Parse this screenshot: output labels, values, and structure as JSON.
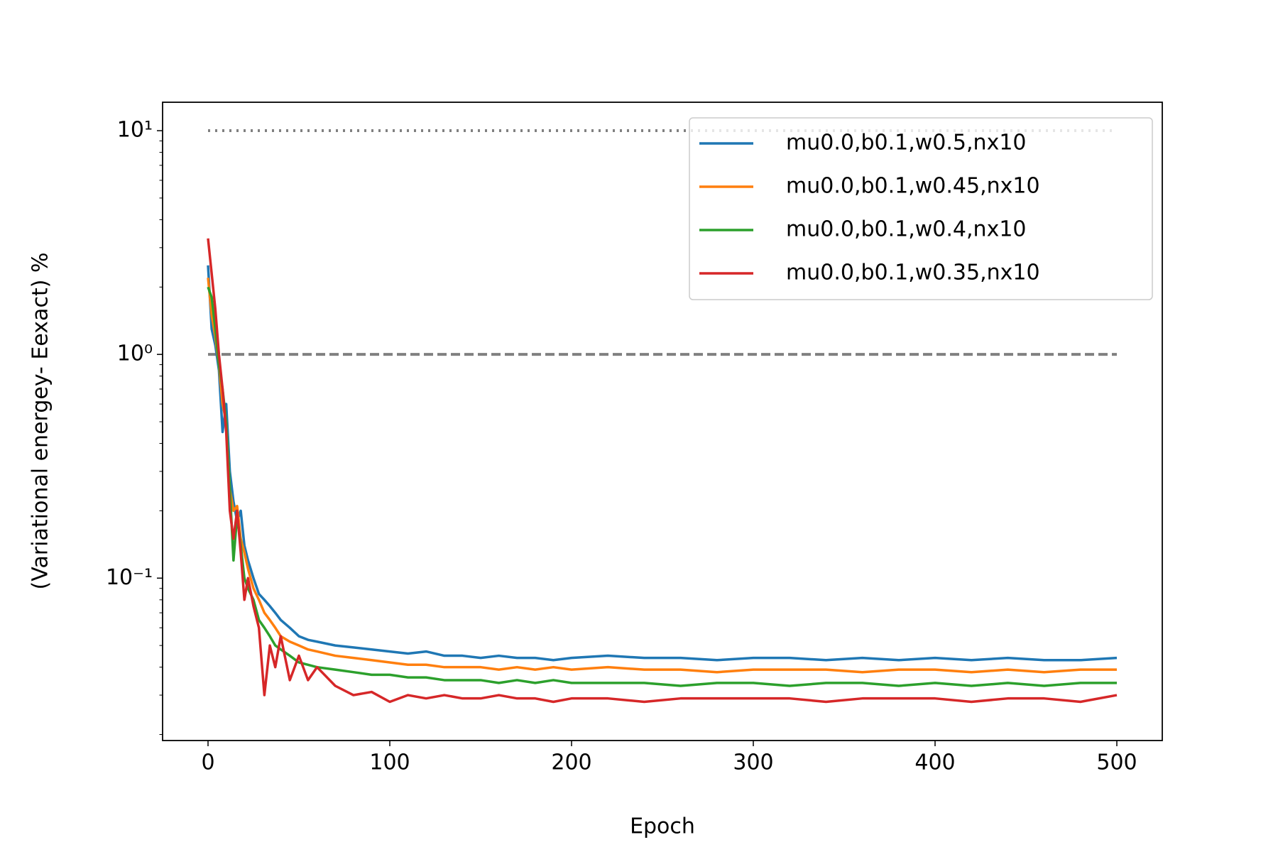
{
  "chart_data": {
    "type": "line",
    "xlabel": "Epoch",
    "ylabel": "(Variational energey- Eexact) %",
    "log_y": true,
    "legend": "upper right",
    "xlim": [
      -25,
      525
    ],
    "ylim": [
      0.0188,
      13.4
    ],
    "xticks": [
      0,
      100,
      200,
      300,
      400,
      500
    ],
    "yticks": [
      {
        "value": 0.1,
        "label": "10⁻¹"
      },
      {
        "value": 1,
        "label": "10⁰"
      },
      {
        "value": 10,
        "label": "10¹"
      }
    ],
    "yminorticks": [
      0.02,
      0.03,
      0.04,
      0.05,
      0.06,
      0.07,
      0.08,
      0.09,
      0.2,
      0.3,
      0.4,
      0.5,
      0.6,
      0.7,
      0.8,
      0.9,
      2,
      3,
      4,
      5,
      6,
      7,
      8,
      9
    ],
    "hlines": [
      {
        "y": 10,
        "style": "dotted",
        "color": "#808080",
        "xrange": [
          0,
          500
        ]
      },
      {
        "y": 1,
        "style": "dashed",
        "color": "#808080",
        "xrange": [
          0,
          500
        ]
      }
    ],
    "x": [
      0,
      2,
      4,
      6,
      8,
      10,
      12,
      14,
      16,
      18,
      20,
      22,
      25,
      28,
      31,
      34,
      37,
      40,
      45,
      50,
      55,
      60,
      70,
      80,
      90,
      100,
      110,
      120,
      130,
      140,
      150,
      160,
      170,
      180,
      190,
      200,
      220,
      240,
      260,
      280,
      300,
      320,
      340,
      360,
      380,
      400,
      420,
      440,
      460,
      480,
      500
    ],
    "series": [
      {
        "name": "mu0.0,b0.1,w0.5,nx10",
        "color": "#1f77b4",
        "values": [
          2.5,
          1.3,
          1.1,
          0.85,
          0.45,
          0.6,
          0.3,
          0.22,
          0.18,
          0.2,
          0.14,
          0.12,
          0.1,
          0.085,
          0.08,
          0.075,
          0.07,
          0.065,
          0.06,
          0.055,
          0.053,
          0.052,
          0.05,
          0.049,
          0.048,
          0.047,
          0.046,
          0.047,
          0.045,
          0.045,
          0.044,
          0.045,
          0.044,
          0.044,
          0.043,
          0.044,
          0.045,
          0.044,
          0.044,
          0.043,
          0.044,
          0.044,
          0.043,
          0.044,
          0.043,
          0.044,
          0.043,
          0.044,
          0.043,
          0.043,
          0.044
        ]
      },
      {
        "name": "mu0.0,b0.1,w0.45,nx10",
        "color": "#ff7f0e",
        "values": [
          2.2,
          1.5,
          1.2,
          0.9,
          0.6,
          0.5,
          0.25,
          0.2,
          0.21,
          0.15,
          0.13,
          0.11,
          0.09,
          0.08,
          0.07,
          0.065,
          0.06,
          0.055,
          0.052,
          0.05,
          0.048,
          0.047,
          0.045,
          0.044,
          0.043,
          0.042,
          0.041,
          0.041,
          0.04,
          0.04,
          0.04,
          0.039,
          0.04,
          0.039,
          0.04,
          0.039,
          0.04,
          0.039,
          0.039,
          0.038,
          0.039,
          0.039,
          0.039,
          0.038,
          0.039,
          0.039,
          0.038,
          0.039,
          0.038,
          0.039,
          0.039
        ]
      },
      {
        "name": "mu0.0,b0.1,w0.4,nx10",
        "color": "#2ca02c",
        "values": [
          2.0,
          1.8,
          1.3,
          0.9,
          0.7,
          0.5,
          0.25,
          0.12,
          0.19,
          0.14,
          0.1,
          0.09,
          0.08,
          0.065,
          0.06,
          0.055,
          0.05,
          0.048,
          0.045,
          0.042,
          0.041,
          0.04,
          0.039,
          0.038,
          0.037,
          0.037,
          0.036,
          0.036,
          0.035,
          0.035,
          0.035,
          0.034,
          0.035,
          0.034,
          0.035,
          0.034,
          0.034,
          0.034,
          0.033,
          0.034,
          0.034,
          0.033,
          0.034,
          0.034,
          0.033,
          0.034,
          0.033,
          0.034,
          0.033,
          0.034,
          0.034
        ]
      },
      {
        "name": "mu0.0,b0.1,w0.35,nx10",
        "color": "#d62728",
        "values": [
          3.3,
          2.3,
          1.6,
          1.0,
          0.7,
          0.45,
          0.2,
          0.15,
          0.2,
          0.13,
          0.08,
          0.1,
          0.075,
          0.06,
          0.03,
          0.05,
          0.04,
          0.055,
          0.035,
          0.045,
          0.035,
          0.04,
          0.033,
          0.03,
          0.031,
          0.028,
          0.03,
          0.029,
          0.03,
          0.029,
          0.029,
          0.03,
          0.029,
          0.029,
          0.028,
          0.029,
          0.029,
          0.028,
          0.029,
          0.029,
          0.029,
          0.029,
          0.028,
          0.029,
          0.029,
          0.029,
          0.028,
          0.029,
          0.029,
          0.028,
          0.03
        ]
      }
    ]
  }
}
